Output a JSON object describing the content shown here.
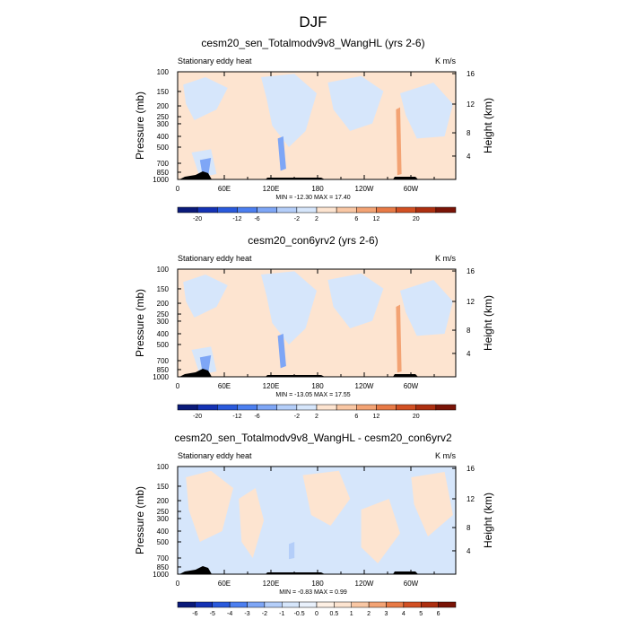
{
  "figure": {
    "title": "DJF"
  },
  "colors": {
    "land": "#000000",
    "frame": "#000000"
  },
  "chart_data": [
    {
      "type": "heatmap",
      "title": "cesm20_sen_Totalmodv9v8_WangHL (yrs 2-6)",
      "left_label": "Stationary eddy heat",
      "right_label": "K m/s",
      "ylabel": "Pressure (mb)",
      "ylabel_right": "Height (km)",
      "x_ticks": [
        "0",
        "60E",
        "120E",
        "180",
        "120W",
        "60W"
      ],
      "y_ticks": [
        "100",
        "150",
        "200",
        "250",
        "300",
        "400",
        "500",
        "700",
        "850",
        "1000"
      ],
      "y_ticks_right": [
        "16",
        "12",
        "8",
        "4"
      ],
      "stats_text": "MIN = -12.30   MAX =  17.40",
      "min": -12.3,
      "max": 17.4,
      "colorbar": {
        "labels": [
          "-20",
          "-12",
          "-6",
          "-2",
          "2",
          "6",
          "12",
          "20"
        ],
        "colors": [
          "#0a1a7a",
          "#1432b4",
          "#2a5adc",
          "#4c7ff0",
          "#7ea6f6",
          "#b4cef9",
          "#d6e6fb",
          "#fde4d0",
          "#f9c7a4",
          "#f3a374",
          "#e87a46",
          "#d25023",
          "#ad2f10",
          "#7a1407"
        ]
      }
    },
    {
      "type": "heatmap",
      "title": "cesm20_con6yrv2 (yrs 2-6)",
      "left_label": "Stationary eddy heat",
      "right_label": "K m/s",
      "ylabel": "Pressure (mb)",
      "ylabel_right": "Height (km)",
      "x_ticks": [
        "0",
        "60E",
        "120E",
        "180",
        "120W",
        "60W"
      ],
      "y_ticks": [
        "100",
        "150",
        "200",
        "250",
        "300",
        "400",
        "500",
        "700",
        "850",
        "1000"
      ],
      "y_ticks_right": [
        "16",
        "12",
        "8",
        "4"
      ],
      "stats_text": "MIN = -13.05   MAX =  17.55",
      "min": -13.05,
      "max": 17.55,
      "colorbar": {
        "labels": [
          "-20",
          "-12",
          "-6",
          "-2",
          "2",
          "6",
          "12",
          "20"
        ],
        "colors": [
          "#0a1a7a",
          "#1432b4",
          "#2a5adc",
          "#4c7ff0",
          "#7ea6f6",
          "#b4cef9",
          "#d6e6fb",
          "#fde4d0",
          "#f9c7a4",
          "#f3a374",
          "#e87a46",
          "#d25023",
          "#ad2f10",
          "#7a1407"
        ]
      }
    },
    {
      "type": "heatmap",
      "title": "cesm20_sen_Totalmodv9v8_WangHL - cesm20_con6yrv2",
      "left_label": "Stationary eddy heat",
      "right_label": "K m/s",
      "ylabel": "Pressure (mb)",
      "ylabel_right": "Height (km)",
      "x_ticks": [
        "0",
        "60E",
        "120E",
        "180",
        "120W",
        "60W"
      ],
      "y_ticks": [
        "100",
        "150",
        "200",
        "250",
        "300",
        "400",
        "500",
        "700",
        "850",
        "1000"
      ],
      "y_ticks_right": [
        "16",
        "12",
        "8",
        "4"
      ],
      "stats_text": "MIN =  -0.83   MAX =  0.99",
      "min": -0.83,
      "max": 0.99,
      "colorbar": {
        "labels": [
          "-6",
          "-5",
          "-4",
          "-3",
          "-2",
          "-1",
          "-0.5",
          "0",
          "0.5",
          "1",
          "2",
          "3",
          "4",
          "5",
          "6"
        ],
        "colors": [
          "#0a1a7a",
          "#1432b4",
          "#2a5adc",
          "#4c7ff0",
          "#7ea6f6",
          "#b4cef9",
          "#d6e6fb",
          "#e9f1fc",
          "#fef0e4",
          "#fde4d0",
          "#f9c7a4",
          "#f3a374",
          "#e87a46",
          "#d25023",
          "#ad2f10",
          "#7a1407"
        ]
      }
    }
  ]
}
